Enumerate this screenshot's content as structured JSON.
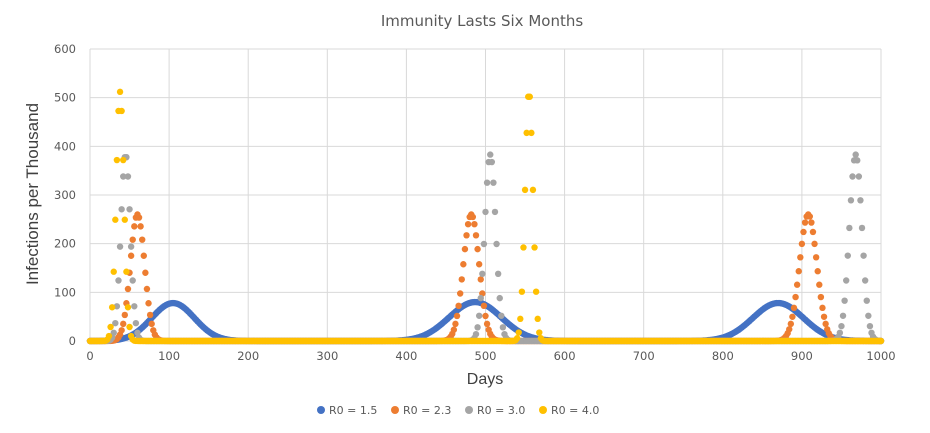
{
  "chart_data": {
    "type": "scatter",
    "title": "Immunity Lasts Six Months",
    "xlabel": "Days",
    "ylabel": "Infections per Thousand",
    "xlim": [
      0,
      1000
    ],
    "ylim": [
      0,
      600
    ],
    "xticks": [
      0,
      100,
      200,
      300,
      400,
      500,
      600,
      700,
      800,
      900,
      1000
    ],
    "yticks": [
      0,
      100,
      200,
      300,
      400,
      500,
      600
    ],
    "grid": true,
    "legend_position": "bottom",
    "series": [
      {
        "name": "R0 = 1.5",
        "color": "#4472C4",
        "peaks": [
          {
            "day": 105,
            "value": 78,
            "width": 27
          },
          {
            "day": 487,
            "value": 80,
            "width": 33
          },
          {
            "day": 870,
            "value": 78,
            "width": 32
          }
        ]
      },
      {
        "name": "R0 = 2.3",
        "color": "#ED7D31",
        "peaks": [
          {
            "day": 60,
            "value": 260,
            "width": 9
          },
          {
            "day": 482,
            "value": 260,
            "width": 10
          },
          {
            "day": 908,
            "value": 260,
            "width": 11
          }
        ]
      },
      {
        "name": "R0 = 3.0",
        "color": "#A5A5A5",
        "peaks": [
          {
            "day": 45,
            "value": 383,
            "width": 6
          },
          {
            "day": 506,
            "value": 383,
            "width": 7
          },
          {
            "day": 968,
            "value": 383,
            "width": 8
          }
        ]
      },
      {
        "name": "R0 = 4.0",
        "color": "#FFC000",
        "peaks": [
          {
            "day": 38,
            "value": 512,
            "width": 5
          },
          {
            "day": 555,
            "value": 512,
            "width": 5
          }
        ]
      }
    ]
  }
}
